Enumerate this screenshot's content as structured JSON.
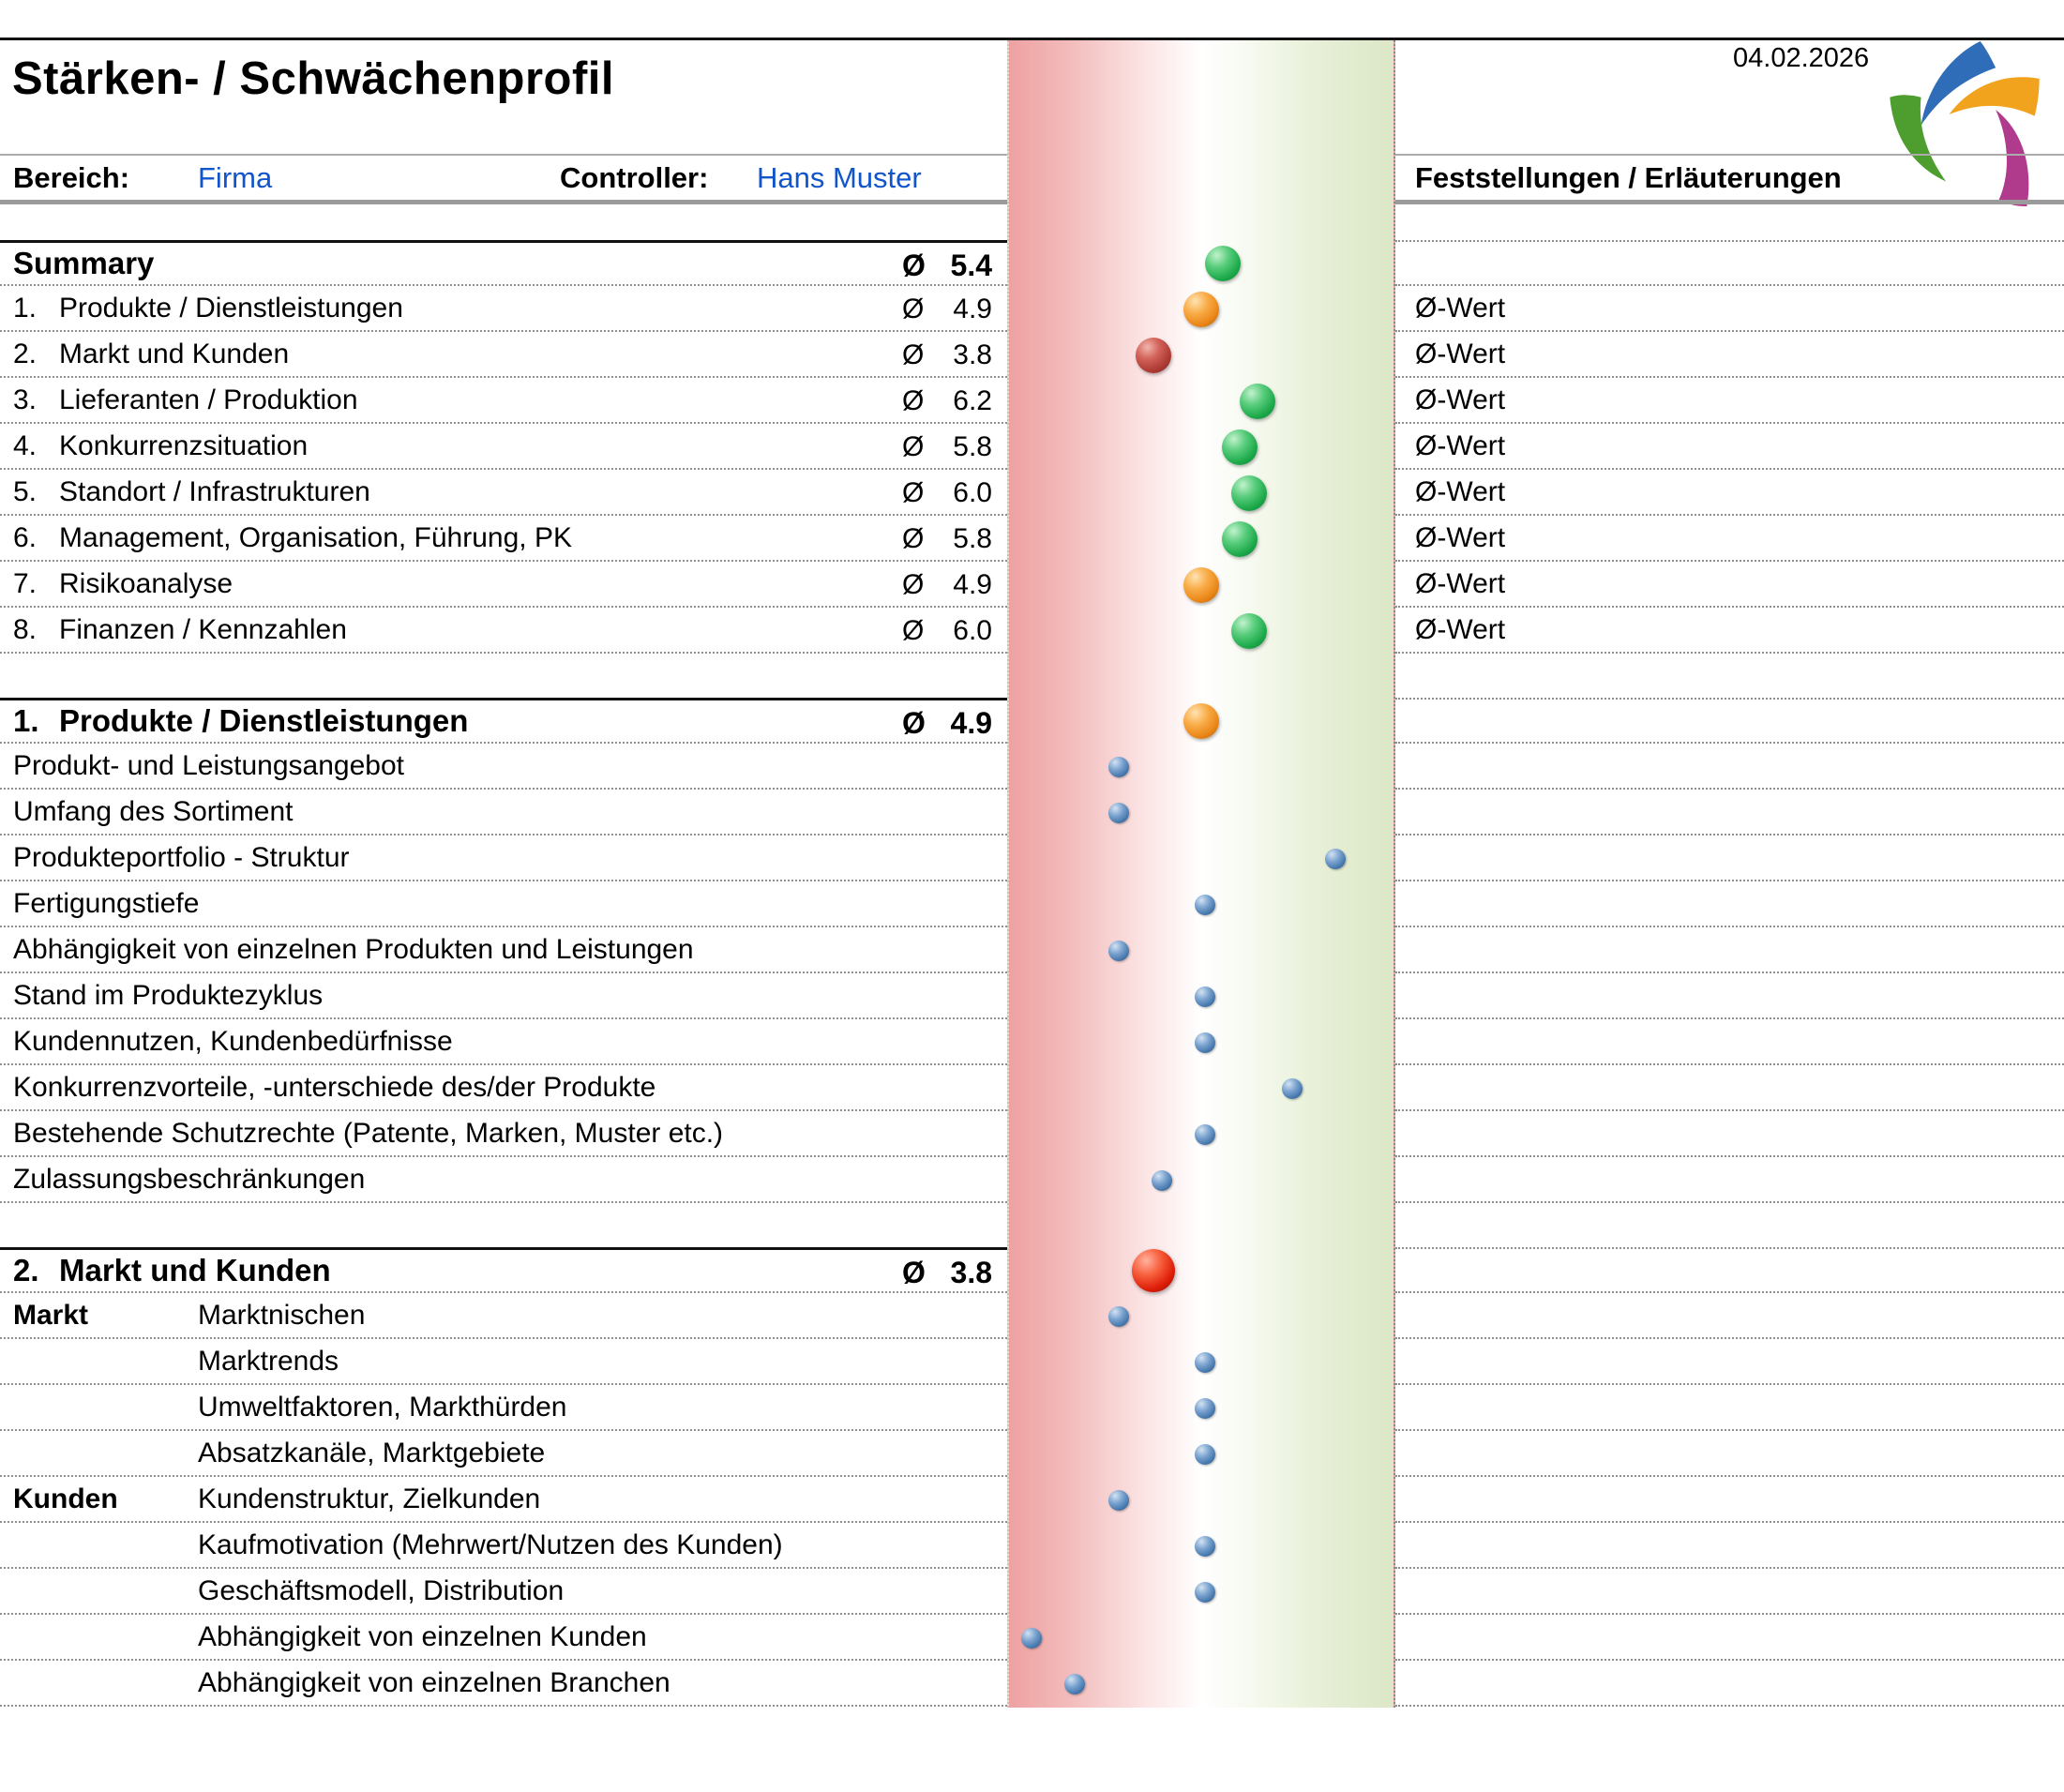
{
  "header": {
    "title": "Stärken- / Schwächenprofil",
    "date": "04.02.2026",
    "bereich_label": "Bereich:",
    "bereich_value": "Firma",
    "controller_label": "Controller:",
    "controller_value": "Hans Muster",
    "notes_header": "Feststellungen / Erläuterungen"
  },
  "misc": {
    "avg_symbol": "Ø"
  },
  "colors": {
    "link_blue": "#1155cc",
    "dot_green": "#1ca94a",
    "dot_orange": "#ea8617",
    "dot_darkred": "#ad3a33",
    "dot_red": "#dd1d08",
    "dot_blue": "#4678ad",
    "band_left_red": "#eea1a1",
    "band_right_green": "#dbe7c6"
  },
  "summary": {
    "title": "Summary",
    "avg": "5.4",
    "value": 5.4,
    "dot": "green",
    "rows": [
      {
        "num": "1.",
        "label": "Produkte / Dienstleistungen",
        "avg": "4.9",
        "value": 4.9,
        "dot": "orange",
        "note": "Ø-Wert"
      },
      {
        "num": "2.",
        "label": "Markt und Kunden",
        "avg": "3.8",
        "value": 3.8,
        "dot": "darkred",
        "note": "Ø-Wert"
      },
      {
        "num": "3.",
        "label": "Lieferanten / Produktion",
        "avg": "6.2",
        "value": 6.2,
        "dot": "green",
        "note": "Ø-Wert"
      },
      {
        "num": "4.",
        "label": "Konkurrenzsituation",
        "avg": "5.8",
        "value": 5.8,
        "dot": "green",
        "note": "Ø-Wert"
      },
      {
        "num": "5.",
        "label": "Standort / Infrastrukturen",
        "avg": "6.0",
        "value": 6.0,
        "dot": "green",
        "note": "Ø-Wert"
      },
      {
        "num": "6.",
        "label": "Management, Organisation, Führung, PK",
        "avg": "5.8",
        "value": 5.8,
        "dot": "green",
        "note": "Ø-Wert"
      },
      {
        "num": "7.",
        "label": "Risikoanalyse",
        "avg": "4.9",
        "value": 4.9,
        "dot": "orange",
        "note": "Ø-Wert"
      },
      {
        "num": "8.",
        "label": "Finanzen / Kennzahlen",
        "avg": "6.0",
        "value": 6.0,
        "dot": "green",
        "note": "Ø-Wert"
      }
    ]
  },
  "sections": [
    {
      "num": "1.",
      "title": "Produkte / Dienstleistungen",
      "avg": "4.9",
      "value": 4.9,
      "dot": "orange",
      "grouped": false,
      "rows": [
        {
          "label": "Produkt- und Leistungsangebot",
          "value": 3
        },
        {
          "label": "Umfang des Sortiment",
          "value": 3
        },
        {
          "label": "Produkteportfolio - Struktur",
          "value": 8
        },
        {
          "label": "Fertigungstiefe",
          "value": 5
        },
        {
          "label": "Abhängigkeit von einzelnen Produkten und Leistungen",
          "value": 3
        },
        {
          "label": "Stand im Produktezyklus",
          "value": 5
        },
        {
          "label": "Kundennutzen, Kundenbedürfnisse",
          "value": 5
        },
        {
          "label": "Konkurrenzvorteile, -unterschiede des/der Produkte",
          "value": 7
        },
        {
          "label": "Bestehende Schutzrechte (Patente, Marken, Muster etc.)",
          "value": 5
        },
        {
          "label": "Zulassungsbeschränkungen",
          "value": 4
        }
      ]
    },
    {
      "num": "2.",
      "title": "Markt und Kunden",
      "avg": "3.8",
      "value": 3.8,
      "dot": "red",
      "grouped": true,
      "rows": [
        {
          "group": "Markt",
          "label": "Marktnischen",
          "value": 3
        },
        {
          "group": "",
          "label": "Marktrends",
          "value": 5
        },
        {
          "group": "",
          "label": "Umweltfaktoren, Markthürden",
          "value": 5
        },
        {
          "group": "",
          "label": "Absatzkanäle, Marktgebiete",
          "value": 5
        },
        {
          "group": "Kunden",
          "label": "Kundenstruktur, Zielkunden",
          "value": 3
        },
        {
          "group": "",
          "label": "Kaufmotivation (Mehrwert/Nutzen des Kunden)",
          "value": 5
        },
        {
          "group": "",
          "label": "Geschäftsmodell, Distribution",
          "value": 5
        },
        {
          "group": "",
          "label": "Abhängigkeit von einzelnen Kunden",
          "value": 1
        },
        {
          "group": "",
          "label": "Abhängigkeit von einzelnen Branchen",
          "value": 2
        }
      ]
    }
  ],
  "chart_data": {
    "type": "scatter",
    "title": "Stärken- / Schwächenprofil",
    "axis": {
      "min": 0,
      "max": 10,
      "tick_labels_visible": false,
      "background_band": [
        "#eea1a1",
        "#ffffff",
        "#dbe7c6"
      ]
    },
    "series": [
      {
        "name": "Summary Ø-Werte",
        "points": [
          {
            "label": "Summary",
            "value": 5.4,
            "color": "green"
          },
          {
            "label": "1. Produkte / Dienstleistungen",
            "value": 4.9,
            "color": "orange"
          },
          {
            "label": "2. Markt und Kunden",
            "value": 3.8,
            "color": "darkred"
          },
          {
            "label": "3. Lieferanten / Produktion",
            "value": 6.2,
            "color": "green"
          },
          {
            "label": "4. Konkurrenzsituation",
            "value": 5.8,
            "color": "green"
          },
          {
            "label": "5. Standort / Infrastrukturen",
            "value": 6.0,
            "color": "green"
          },
          {
            "label": "6. Management, Organisation, Führung, PK",
            "value": 5.8,
            "color": "green"
          },
          {
            "label": "7. Risikoanalyse",
            "value": 4.9,
            "color": "orange"
          },
          {
            "label": "8. Finanzen / Kennzahlen",
            "value": 6.0,
            "color": "green"
          }
        ]
      },
      {
        "name": "1. Produkte / Dienstleistungen",
        "header_point": {
          "value": 4.9,
          "color": "orange"
        },
        "points": [
          {
            "label": "Produkt- und Leistungsangebot",
            "value": 3,
            "color": "blue"
          },
          {
            "label": "Umfang des Sortiment",
            "value": 3,
            "color": "blue"
          },
          {
            "label": "Produkteportfolio - Struktur",
            "value": 8,
            "color": "blue"
          },
          {
            "label": "Fertigungstiefe",
            "value": 5,
            "color": "blue"
          },
          {
            "label": "Abhängigkeit von einzelnen Produkten und Leistungen",
            "value": 3,
            "color": "blue"
          },
          {
            "label": "Stand im Produktezyklus",
            "value": 5,
            "color": "blue"
          },
          {
            "label": "Kundennutzen, Kundenbedürfnisse",
            "value": 5,
            "color": "blue"
          },
          {
            "label": "Konkurrenzvorteile, -unterschiede des/der Produkte",
            "value": 7,
            "color": "blue"
          },
          {
            "label": "Bestehende Schutzrechte (Patente, Marken, Muster etc.)",
            "value": 5,
            "color": "blue"
          },
          {
            "label": "Zulassungsbeschränkungen",
            "value": 4,
            "color": "blue"
          }
        ]
      },
      {
        "name": "2. Markt und Kunden",
        "header_point": {
          "value": 3.8,
          "color": "red"
        },
        "points": [
          {
            "label": "Marktnischen",
            "value": 3,
            "color": "blue"
          },
          {
            "label": "Marktrends",
            "value": 5,
            "color": "blue"
          },
          {
            "label": "Umweltfaktoren, Markthürden",
            "value": 5,
            "color": "blue"
          },
          {
            "label": "Absatzkanäle, Marktgebiete",
            "value": 5,
            "color": "blue"
          },
          {
            "label": "Kundenstruktur, Zielkunden",
            "value": 3,
            "color": "blue"
          },
          {
            "label": "Kaufmotivation (Mehrwert/Nutzen des Kunden)",
            "value": 5,
            "color": "blue"
          },
          {
            "label": "Geschäftsmodell, Distribution",
            "value": 5,
            "color": "blue"
          },
          {
            "label": "Abhängigkeit von einzelnen Kunden",
            "value": 1,
            "color": "blue"
          },
          {
            "label": "Abhängigkeit von einzelnen Branchen",
            "value": 2,
            "color": "blue"
          }
        ]
      }
    ]
  }
}
